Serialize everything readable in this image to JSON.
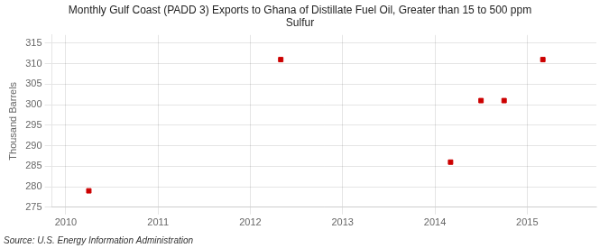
{
  "chart_data": {
    "type": "scatter",
    "title": "Monthly Gulf Coast (PADD 3) Exports to Ghana of Distillate Fuel Oil, Greater than 15 to 500 ppm\nSulfur",
    "ylabel": "Thousand Barrels",
    "annotations": [
      "Source: U.S. Energy Information Administration"
    ],
    "x": [
      2010.25,
      2012.33,
      2014.17,
      2014.5,
      2014.75,
      2015.17
    ],
    "values": [
      279,
      311,
      286,
      301,
      301,
      311
    ],
    "color": "#cc0000",
    "marker": "square",
    "xlim": [
      2009.85,
      2015.75
    ],
    "ylim": [
      275,
      317
    ],
    "xticks": [
      2010,
      2011,
      2012,
      2013,
      2014,
      2015
    ],
    "yticks": [
      275,
      280,
      285,
      290,
      295,
      300,
      305,
      310,
      315
    ],
    "grid": true
  }
}
